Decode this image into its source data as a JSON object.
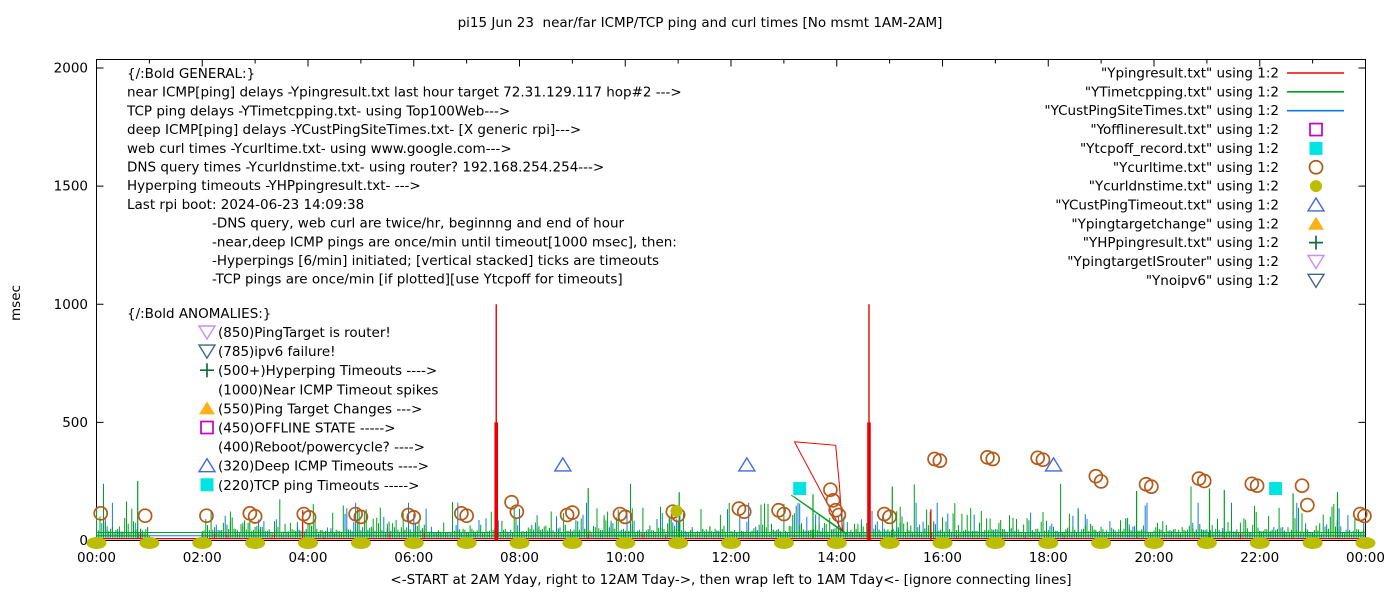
{
  "title": "pi15 Jun 23  near/far ICMP/TCP ping and curl times [No msmt 1AM-2AM]",
  "axes": {
    "y_label": "msec",
    "y_ticks": [
      0,
      500,
      1000,
      1500,
      2000
    ],
    "x_ticks": [
      "00:00",
      "02:00",
      "04:00",
      "06:00",
      "08:00",
      "10:00",
      "12:00",
      "14:00",
      "16:00",
      "18:00",
      "20:00",
      "22:00",
      "00:00"
    ],
    "x_label": "<-START at 2AM Yday, right to 12AM Tday->, then wrap left to 1AM Tday<- [ignore connecting lines]"
  },
  "colors": {
    "red": "#ee0000",
    "green": "#00a020",
    "blue": "#0e7ae6",
    "magenta": "#c400c4",
    "cyan": "#00e3e3",
    "orange_brown": "#b25a1a",
    "olive": "#bdbd00",
    "royal_blue": "#4169e1",
    "orange": "#fbb117",
    "dark_green": "#156b3e",
    "violet": "#c98df2",
    "steel_dark": "#3a6880"
  },
  "annotations": {
    "general": [
      {
        "text": "{/:Bold GENERAL:}",
        "indent": false
      },
      {
        "text": "near ICMP[ping] delays -Ypingresult.txt last hour target 72.31.129.117 hop#2 --->",
        "indent": false
      },
      {
        "text": "TCP ping delays -YTimetcpping.txt- using Top100Web--->",
        "indent": false
      },
      {
        "text": "deep ICMP[ping] delays -YCustPingSiteTimes.txt- [X generic rpi]--->",
        "indent": false
      },
      {
        "text": "web curl times -Ycurltime.txt- using www.google.com--->",
        "indent": false
      },
      {
        "text": "DNS query times -Ycurldnstime.txt- using router? 192.168.254.254--->",
        "indent": false
      },
      {
        "text": "Hyperping timeouts -YHPpingresult.txt- --->",
        "indent": false
      },
      {
        "text": "Last rpi boot: 2024-06-23 14:09:38",
        "indent": false
      },
      {
        "text": "-DNS query, web curl are twice/hr, beginnng and end of hour",
        "indent": true
      },
      {
        "text": "-near,deep ICMP pings are once/min until timeout[1000 msec], then:",
        "indent": true
      },
      {
        "text": " -Hyperpings [6/min] initiated; [vertical stacked] ticks are timeouts",
        "indent": true
      },
      {
        "text": "-TCP pings are once/min [if plotted][use Ytcpoff for timeouts]",
        "indent": true
      }
    ],
    "anomalies_heading": "{/:Bold ANOMALIES:}",
    "anomalies": [
      {
        "marker": "tri-down-open",
        "color": "violet",
        "text": "(850)PingTarget is router!"
      },
      {
        "marker": "tri-down-open",
        "color": "steel_dark",
        "text": "(785)ipv6 failure!"
      },
      {
        "marker": "plus",
        "color": "dark_green",
        "text": "(500+)Hyperping Timeouts ---->"
      },
      {
        "marker": null,
        "color": null,
        "text": "(1000)Near ICMP Timeout spikes"
      },
      {
        "marker": "tri-up-filled",
        "color": "orange",
        "text": "(550)Ping Target Changes --->"
      },
      {
        "marker": "square-open",
        "color": "magenta",
        "text": "(450)OFFLINE STATE ----->"
      },
      {
        "marker": null,
        "color": null,
        "text": "(400)Reboot/powercycle? ---->"
      },
      {
        "marker": "tri-up-open",
        "color": "royal_blue",
        "text": "(320)Deep ICMP Timeouts ---->"
      },
      {
        "marker": "square-filled",
        "color": "cyan",
        "text": "(220)TCP ping Timeouts ----->"
      }
    ]
  },
  "legend": [
    {
      "label": "\"Ypingresult.txt\" using 1:2",
      "marker": "line",
      "color": "red"
    },
    {
      "label": "\"YTimetcpping.txt\" using 1:2",
      "marker": "line",
      "color": "green"
    },
    {
      "label": "\"YCustPingSiteTimes.txt\" using 1:2",
      "marker": "line",
      "color": "blue"
    },
    {
      "label": "\"Yofflineresult.txt\" using 1:2",
      "marker": "square-open",
      "color": "magenta"
    },
    {
      "label": "\"Ytcpoff_record.txt\" using 1:2",
      "marker": "square-filled",
      "color": "cyan"
    },
    {
      "label": "\"Ycurltime.txt\" using 1:2",
      "marker": "circle-open",
      "color": "orange_brown"
    },
    {
      "label": "\"Ycurldnstime.txt\" using 1:2",
      "marker": "circle-filled",
      "color": "olive"
    },
    {
      "label": "\"YCustPingTimeout.txt\" using 1:2",
      "marker": "tri-up-open",
      "color": "royal_blue"
    },
    {
      "label": "\"Ypingtargetchange\" using 1:2",
      "marker": "tri-up-filled",
      "color": "orange"
    },
    {
      "label": "\"YHPpingresult.txt\" using 1:2",
      "marker": "plus",
      "color": "dark_green"
    },
    {
      "label": "\"YpingtargetISrouter\" using 1:2",
      "marker": "tri-down-open",
      "color": "violet"
    },
    {
      "label": "\"Ynoipv6\" using 1:2",
      "marker": "tri-down-open",
      "color": "steel_dark"
    }
  ],
  "chart_data": {
    "type": "line",
    "x_hours_range": [
      0,
      24
    ],
    "y_msec_range": [
      0,
      2000
    ],
    "measurement_gap_hours": [
      1,
      2
    ],
    "red_series": {
      "name": "Ypingresult.txt",
      "color": "red",
      "baseline_msec": 8,
      "timeout_spikes": [
        {
          "hour": 7.56,
          "peak_msec": 1000,
          "thick_to_msec": 500
        },
        {
          "hour": 14.61,
          "peak_msec": 1000,
          "thick_to_msec": 500
        }
      ],
      "small_spikes": [
        [
          3.9,
          128
        ],
        [
          15.78,
          132
        ]
      ],
      "connector_polylines": [
        [
          [
            13.2,
            418
          ],
          [
            13.98,
            403
          ],
          [
            14.01,
            330
          ],
          [
            14.05,
            235
          ],
          [
            14.11,
            40
          ]
        ],
        [
          [
            13.2,
            418
          ],
          [
            14.1,
            40
          ]
        ]
      ]
    },
    "green_series": {
      "name": "YTimetcpping.txt",
      "color": "green",
      "baseline_msec": 34,
      "noise": {
        "spike_probability": 0.5,
        "typical_spike_msec": [
          40,
          150
        ],
        "max_spike_msec": 245
      },
      "tall_spikes": [
        [
          0.78,
          252
        ],
        [
          9.3,
          222
        ],
        [
          11.02,
          205
        ],
        [
          13.55,
          196
        ],
        [
          15.05,
          228
        ],
        [
          19.67,
          210
        ],
        [
          21.05,
          220
        ],
        [
          21.33,
          214
        ],
        [
          22.63,
          200
        ],
        [
          23.47,
          205
        ]
      ],
      "connector_polylines": [
        [
          [
            13.14,
            192
          ],
          [
            14.16,
            30
          ]
        ],
        [
          [
            13.19,
            186
          ],
          [
            14.2,
            28
          ]
        ]
      ]
    },
    "blue_series": {
      "name": "YCustPingSiteTimes.txt",
      "color": "blue",
      "baseline_msec": 20,
      "noise": {
        "spike_probability": 0.5,
        "typical_spike_msec": [
          35,
          120
        ],
        "max_spike_msec": 150
      }
    },
    "scatter_series": [
      {
        "name": "Ycurltime.txt",
        "marker": "circle-open",
        "color": "orange_brown",
        "points": [
          [
            0.08,
            115
          ],
          [
            0.92,
            105
          ],
          [
            2.08,
            105
          ],
          [
            2.9,
            115
          ],
          [
            3.0,
            102
          ],
          [
            3.92,
            112
          ],
          [
            4.02,
            98
          ],
          [
            4.9,
            112
          ],
          [
            5.0,
            100
          ],
          [
            5.9,
            108
          ],
          [
            6.0,
            98
          ],
          [
            6.9,
            115
          ],
          [
            7.0,
            105
          ],
          [
            7.85,
            162
          ],
          [
            7.95,
            122
          ],
          [
            8.9,
            108
          ],
          [
            9.0,
            118
          ],
          [
            9.9,
            112
          ],
          [
            10.0,
            100
          ],
          [
            10.9,
            122
          ],
          [
            11.0,
            108
          ],
          [
            12.15,
            135
          ],
          [
            12.25,
            122
          ],
          [
            12.9,
            128
          ],
          [
            13.0,
            112
          ],
          [
            13.88,
            215
          ],
          [
            13.93,
            170
          ],
          [
            13.98,
            128
          ],
          [
            14.04,
            108
          ],
          [
            14.9,
            112
          ],
          [
            15.0,
            100
          ],
          [
            15.85,
            345
          ],
          [
            15.95,
            338
          ],
          [
            16.85,
            352
          ],
          [
            16.95,
            345
          ],
          [
            17.8,
            350
          ],
          [
            17.9,
            342
          ],
          [
            18.9,
            272
          ],
          [
            19.0,
            250
          ],
          [
            19.85,
            238
          ],
          [
            19.95,
            228
          ],
          [
            20.85,
            262
          ],
          [
            20.95,
            252
          ],
          [
            21.85,
            240
          ],
          [
            21.95,
            232
          ],
          [
            22.8,
            232
          ],
          [
            22.9,
            150
          ],
          [
            23.9,
            112
          ],
          [
            23.98,
            104
          ]
        ]
      },
      {
        "name": "Ycurldnstime.txt",
        "marker": "circle-filled",
        "color": "olive",
        "baseline_hours": [
          0,
          1,
          2,
          3,
          4,
          5,
          6,
          7,
          8,
          9,
          10,
          11,
          12,
          13,
          14,
          15,
          16,
          17,
          18,
          19,
          20,
          21,
          22,
          23,
          24
        ],
        "baseline_msec": 0,
        "elevated_points": [
          [
            10.97,
            125
          ]
        ]
      },
      {
        "name": "YCustPingTimeout.txt",
        "marker": "tri-up-open",
        "color": "royal_blue",
        "points": [
          [
            8.82,
            320
          ],
          [
            12.3,
            320
          ],
          [
            18.1,
            320
          ]
        ]
      },
      {
        "name": "Ytcpoff_record.txt",
        "marker": "square-filled",
        "color": "cyan",
        "points": [
          [
            13.3,
            220
          ],
          [
            22.3,
            220
          ]
        ]
      },
      {
        "name": "Yofflineresult.txt",
        "marker": "square-open",
        "color": "magenta",
        "points": []
      },
      {
        "name": "Ypingtargetchange",
        "marker": "tri-up-filled",
        "color": "orange",
        "points": []
      },
      {
        "name": "YHPpingresult.txt",
        "marker": "plus",
        "color": "dark_green",
        "points": []
      },
      {
        "name": "YpingtargetISrouter",
        "marker": "tri-down-open",
        "color": "violet",
        "points": []
      },
      {
        "name": "Ynoipv6",
        "marker": "tri-down-open",
        "color": "steel_dark",
        "points": []
      }
    ]
  }
}
